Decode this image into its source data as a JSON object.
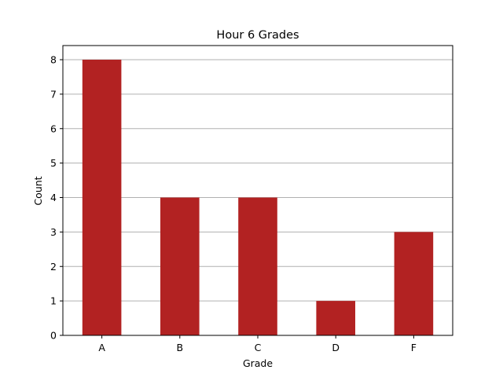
{
  "chart_data": {
    "type": "bar",
    "title": "Hour 6 Grades",
    "xlabel": "Grade",
    "ylabel": "Count",
    "categories": [
      "A",
      "B",
      "C",
      "D",
      "F"
    ],
    "values": [
      8,
      4,
      4,
      1,
      3
    ],
    "ylim": [
      0,
      8
    ],
    "yticks": [
      0,
      1,
      2,
      3,
      4,
      5,
      6,
      7,
      8
    ],
    "grid": "y",
    "bar_color": "#b22222",
    "grid_color": "#b0b0b0"
  }
}
